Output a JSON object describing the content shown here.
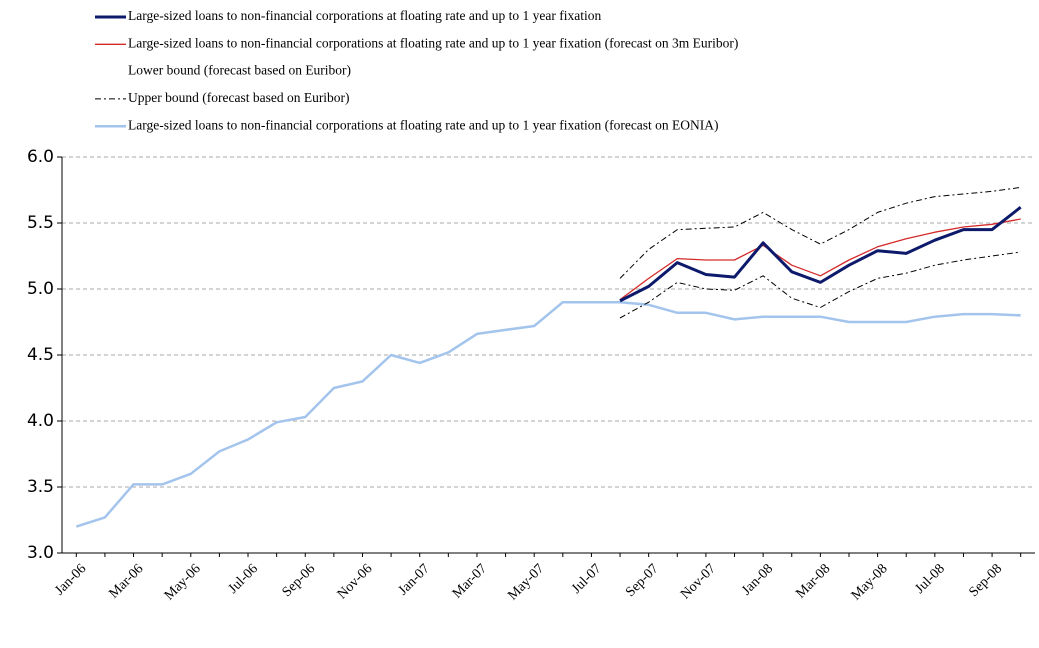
{
  "chart_data": {
    "type": "line",
    "categories": [
      "Jan-06",
      null,
      "Mar-06",
      null,
      "May-06",
      null,
      "Jul-06",
      null,
      "Sep-06",
      null,
      "Nov-06",
      null,
      "Jan-07",
      null,
      "Mar-07",
      null,
      "May-07",
      null,
      "Jul-07",
      null,
      "Sep-07",
      null,
      "Nov-07",
      null,
      "Jan-08",
      null,
      "Mar-08",
      null,
      "May-08",
      null,
      "Jul-08",
      null,
      "Sep-08",
      null
    ],
    "series": [
      {
        "name": "Large-sized loans to non-financial corporations at floating rate and up to 1 year fixation",
        "color": "#0d1a6b",
        "width": 3,
        "dash": "none",
        "values": [
          null,
          null,
          null,
          null,
          null,
          null,
          null,
          null,
          null,
          null,
          null,
          null,
          null,
          null,
          null,
          null,
          null,
          null,
          null,
          4.91,
          5.02,
          5.2,
          5.11,
          5.09,
          5.35,
          5.13,
          5.05,
          5.18,
          5.29,
          5.27,
          5.37,
          5.45,
          5.45,
          5.62
        ]
      },
      {
        "name": "Large-sized loans to non-financial corporations at floating rate and up to 1 year fixation (forecast on 3m Euribor)",
        "color": "#d42a2a",
        "width": 1.3,
        "dash": "none",
        "values": [
          null,
          null,
          null,
          null,
          null,
          null,
          null,
          null,
          null,
          null,
          null,
          null,
          null,
          null,
          null,
          null,
          null,
          null,
          null,
          4.92,
          5.08,
          5.23,
          5.22,
          5.22,
          5.33,
          5.18,
          5.1,
          5.22,
          5.32,
          5.38,
          5.43,
          5.47,
          5.49,
          5.53
        ]
      },
      {
        "name": "Lower bound (forecast based on Euribor)",
        "color": "#000000",
        "width": 1,
        "dash": "6,3,2,3",
        "values": [
          null,
          null,
          null,
          null,
          null,
          null,
          null,
          null,
          null,
          null,
          null,
          null,
          null,
          null,
          null,
          null,
          null,
          null,
          null,
          4.78,
          4.9,
          5.05,
          5.0,
          4.99,
          5.1,
          4.93,
          4.86,
          4.98,
          5.08,
          5.12,
          5.18,
          5.22,
          5.25,
          5.28
        ]
      },
      {
        "name": "Upper bound (forecast based on Euribor)",
        "color": "#000000",
        "width": 1,
        "dash": "6,3,2,3",
        "values": [
          null,
          null,
          null,
          null,
          null,
          null,
          null,
          null,
          null,
          null,
          null,
          null,
          null,
          null,
          null,
          null,
          null,
          null,
          null,
          5.08,
          5.3,
          5.45,
          5.46,
          5.47,
          5.58,
          5.45,
          5.34,
          5.45,
          5.58,
          5.65,
          5.7,
          5.72,
          5.74,
          5.77
        ]
      },
      {
        "name": "Large-sized loans to non-financial corporations at floating rate and up to 1 year fixation (forecast on EONIA)",
        "color": "#a3c4ec",
        "width": 2.5,
        "dash": "none",
        "values": [
          3.2,
          3.27,
          3.52,
          3.52,
          3.6,
          3.77,
          3.86,
          3.99,
          4.03,
          4.25,
          4.3,
          4.5,
          4.44,
          4.52,
          4.66,
          4.69,
          4.72,
          4.9,
          4.9,
          4.9,
          4.88,
          4.82,
          4.82,
          4.77,
          4.79,
          4.79,
          4.79,
          4.75,
          4.75,
          4.75,
          4.79,
          4.81,
          4.81,
          4.8
        ]
      }
    ],
    "legend_hidden_sample": [
      2
    ],
    "ylim": [
      3.0,
      6.0
    ],
    "yticks": [
      {
        "value": 3,
        "label": "3.0"
      },
      3.5,
      {
        "value": 4,
        "label": "4.0"
      },
      4.5,
      {
        "value": 5,
        "label": "5.0"
      },
      5.5,
      {
        "value": 6,
        "label": "6.0"
      }
    ],
    "grid": true,
    "grid_color": "#aaaaaa",
    "legend": "top"
  }
}
